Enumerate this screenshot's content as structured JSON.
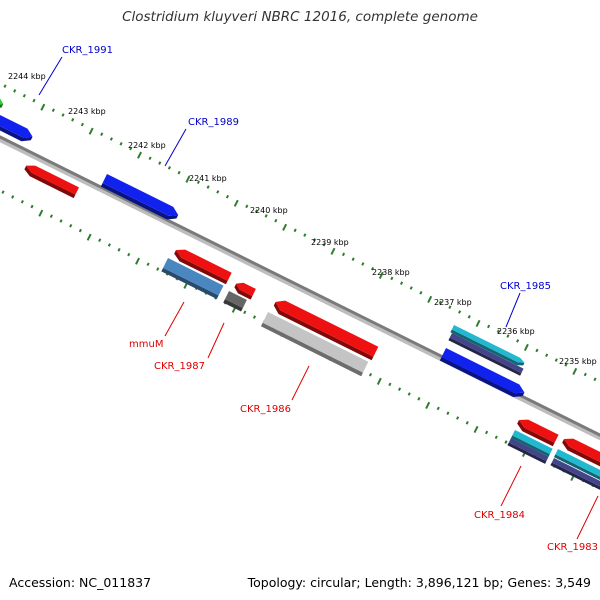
{
  "title": "Clostridium kluyveri NBRC 12016, complete genome",
  "footer": {
    "accession": "Accession: NC_011837",
    "topology": "Topology: circular; Length: 3,896,121 bp; Genes: 3,549"
  },
  "colors": {
    "backbone": "#7a7a7a",
    "tick": "#2e7d2e",
    "forward_label": "#0000cc",
    "reverse_label": "#dd0000",
    "red_gene": "#ee1111",
    "blue_gene": "#1122ee",
    "steel_gene": "#4a86c0",
    "gray_gene": "#666666",
    "light_gray_gene": "#c4c4c4",
    "cyan_gene": "#22b8d0",
    "navy_gene": "#444488",
    "green_gene": "#33cc33"
  },
  "ruler": {
    "tick_labels": [
      "2244 kbp",
      "2243 kbp",
      "2242 kbp",
      "2241 kbp",
      "2240 kbp",
      "2239 kbp",
      "2238 kbp",
      "2237 kbp",
      "2236 kbp",
      "2235 kbp"
    ]
  },
  "gene_labels": [
    {
      "id": "ckr1991",
      "text": "CKR_1991",
      "strand": "forward"
    },
    {
      "id": "ckr1989",
      "text": "CKR_1989",
      "strand": "forward"
    },
    {
      "id": "ckr1985",
      "text": "CKR_1985",
      "strand": "forward"
    },
    {
      "id": "mmum",
      "text": "mmuM",
      "strand": "reverse"
    },
    {
      "id": "ckr1987",
      "text": "CKR_1987",
      "strand": "reverse"
    },
    {
      "id": "ckr1986",
      "text": "CKR_1986",
      "strand": "reverse"
    },
    {
      "id": "ckr1984",
      "text": "CKR_1984",
      "strand": "reverse"
    },
    {
      "id": "ckr1983",
      "text": "CKR_1983",
      "strand": "reverse"
    }
  ]
}
